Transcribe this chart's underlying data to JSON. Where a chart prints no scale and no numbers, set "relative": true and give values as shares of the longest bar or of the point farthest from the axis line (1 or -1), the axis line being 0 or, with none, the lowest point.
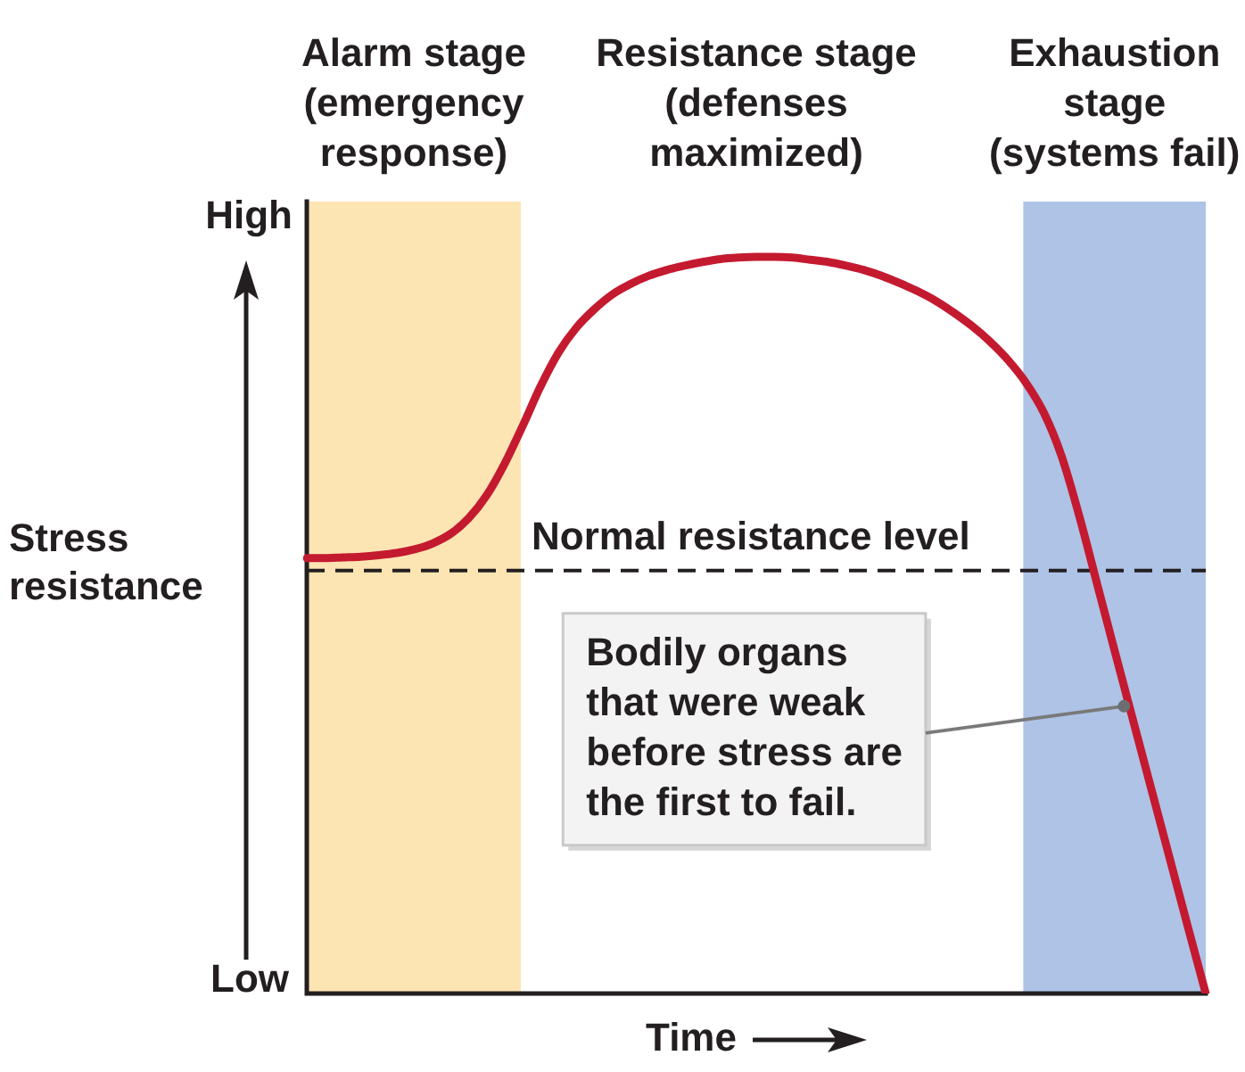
{
  "chart_data": {
    "type": "line",
    "xlabel": "Time",
    "ylabel": "Stress\nresistance",
    "categories": [
      null,
      null,
      null,
      null,
      null,
      null,
      null,
      null,
      null,
      null,
      null,
      null,
      null,
      null,
      null,
      null,
      null,
      null,
      null,
      null,
      null,
      null,
      null,
      null,
      null,
      null,
      null,
      null,
      null,
      null,
      null,
      null,
      null,
      null,
      null,
      null,
      null,
      null,
      null,
      null,
      null,
      null,
      null,
      null,
      null,
      null,
      null,
      null,
      null,
      null,
      null
    ],
    "values": [
      0.591,
      0.591,
      0.592,
      0.593,
      0.595,
      0.598,
      0.603,
      0.611,
      0.624,
      0.645,
      0.676,
      0.719,
      0.77,
      0.824,
      0.87,
      0.904,
      0.929,
      0.949,
      0.963,
      0.974,
      0.982,
      0.988,
      0.993,
      0.997,
      0.999,
      1.0,
      1.0,
      0.999,
      0.996,
      0.993,
      0.988,
      0.982,
      0.974,
      0.964,
      0.953,
      0.94,
      0.924,
      0.906,
      0.885,
      0.86,
      0.829,
      0.788,
      0.728,
      0.645,
      0.552,
      0.459,
      0.367,
      0.275,
      0.183,
      0.091,
      0.0
    ],
    "color": "#c41a30",
    "relative": true,
    "ref_lines": [
      {
        "axis": "y",
        "value": 0.574,
        "label": "Normal resistance level",
        "color": "#231f20",
        "line_style": "dashed"
      }
    ],
    "annotations": [
      "Alarm stage\n(emergency\nresponse)",
      "Resistance stage\n(defenses\nmaximized)",
      "Exhaustion\nstage\n(systems fail)",
      "High",
      "Low",
      "Bodily organs\nthat were weak\nbefore stress are\nthe first to fail."
    ]
  }
}
